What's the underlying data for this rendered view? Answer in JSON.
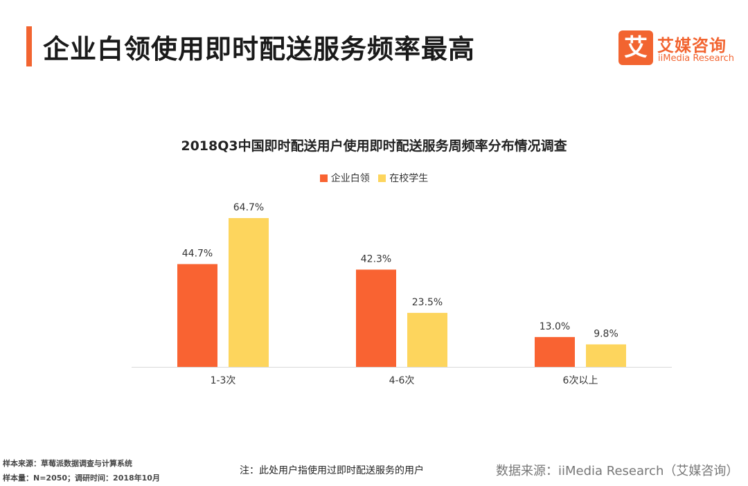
{
  "page": {
    "title": "企业白领使用即时配送服务频率最高",
    "accent_color": "#f26430"
  },
  "logo": {
    "mark": "艾",
    "name_cn": "艾媒咨询",
    "name_en": "iiMedia Research"
  },
  "chart_data": {
    "type": "bar",
    "title": "2018Q3中国即时配送用户使用即时配送服务周频率分布情况调查",
    "categories": [
      "1-3次",
      "4-6次",
      "6次以上"
    ],
    "series": [
      {
        "name": "企业白领",
        "values": [
          44.7,
          42.3,
          13.0
        ],
        "labels": [
          "44.7%",
          "42.3%",
          "13.0%"
        ],
        "color": "#f96332"
      },
      {
        "name": "在校学生",
        "values": [
          64.7,
          23.5,
          9.8
        ],
        "labels": [
          "64.7%",
          "23.5%",
          "9.8%"
        ],
        "color": "#fdd55d"
      }
    ],
    "ylim": [
      0,
      70
    ],
    "unit": "%",
    "legend_position": "top-center",
    "grid": false
  },
  "footer": {
    "sample_source": "样本来源：草莓派数据调查与计算系统",
    "sample_size": "样本量：N=2050；调研时间：2018年10月",
    "note": "注：此处用户指使用过即时配送服务的用户",
    "data_source": "数据来源：iiMedia Research（艾媒咨询）"
  }
}
